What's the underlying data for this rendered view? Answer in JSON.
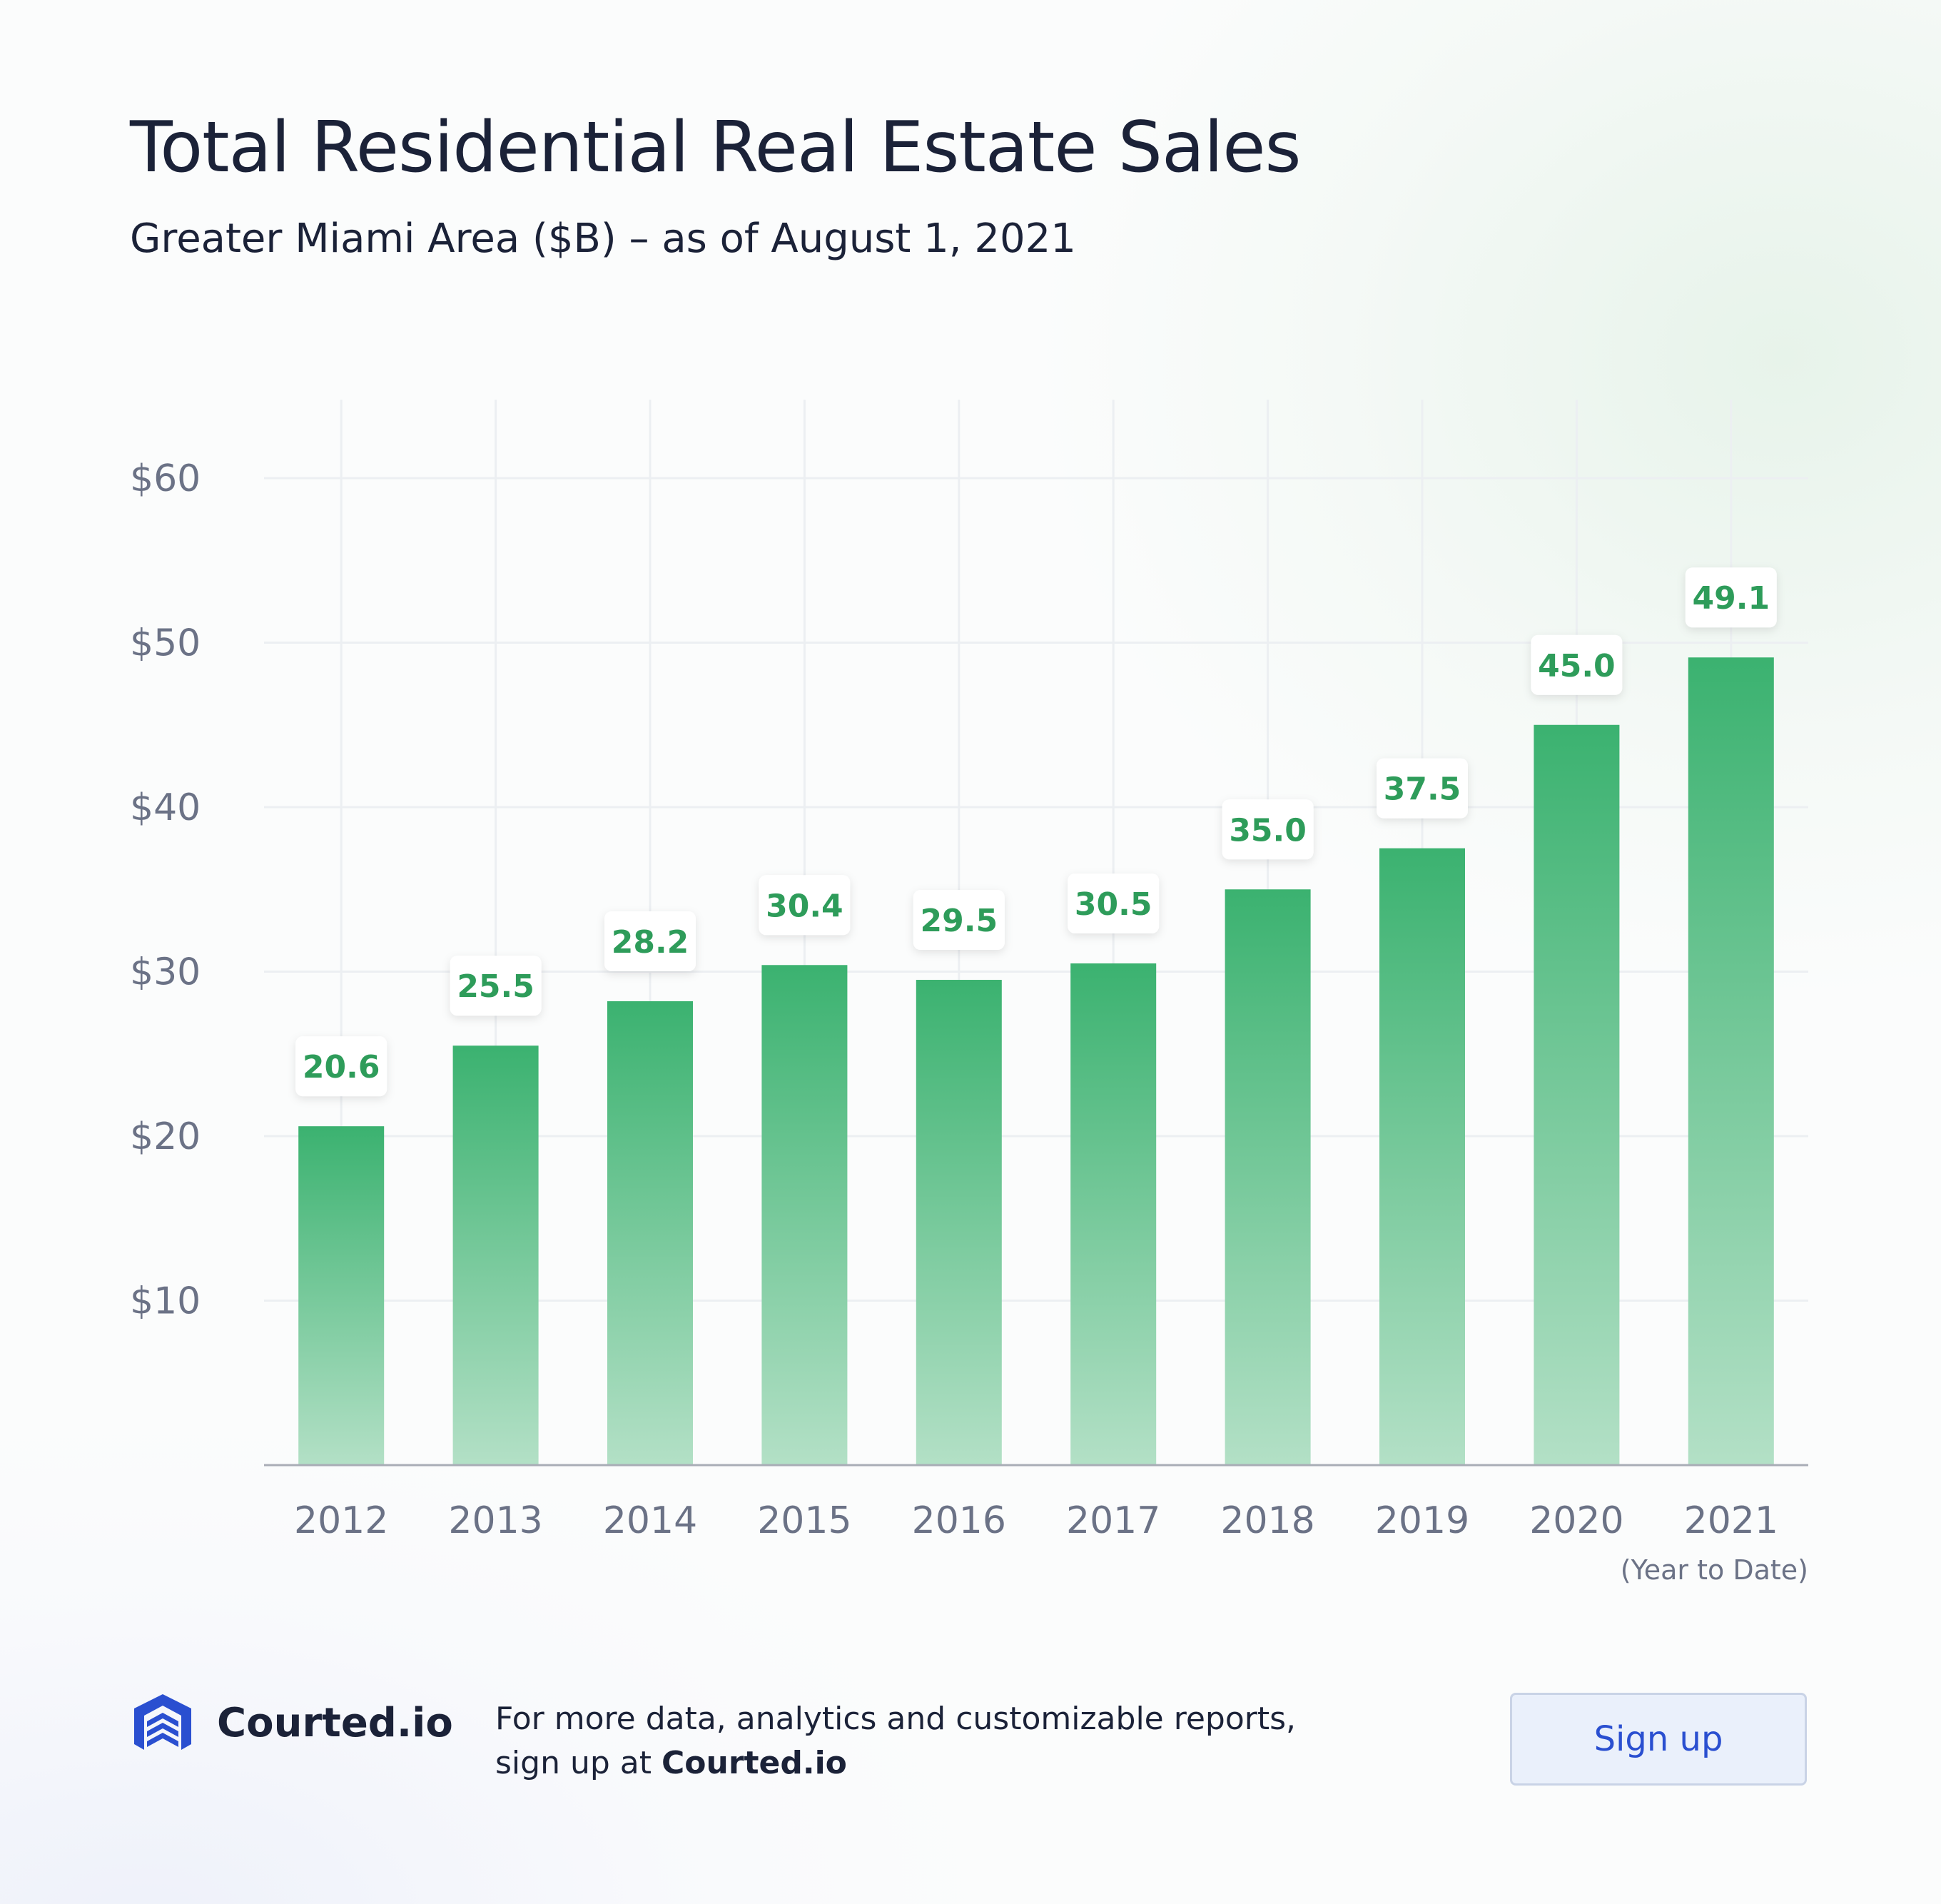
{
  "header": {
    "title": "Total Residential Real Estate Sales",
    "subtitle_strong": "Greater Miami Area ($B)",
    "subtitle_rest": " – as of August 1, 2021"
  },
  "chart_data": {
    "type": "bar",
    "title": "Total Residential Real Estate Sales",
    "subtitle": "Greater Miami Area ($B) – as of August 1, 2021",
    "categories": [
      "2012",
      "2013",
      "2014",
      "2015",
      "2016",
      "2017",
      "2018",
      "2019",
      "2020",
      "2021"
    ],
    "category_notes": [
      "",
      "",
      "",
      "",
      "",
      "",
      "",
      "",
      "",
      "(Year to Date)"
    ],
    "values": [
      20.6,
      25.5,
      28.2,
      30.4,
      29.5,
      30.5,
      35.0,
      37.5,
      45.0,
      49.1
    ],
    "value_labels": [
      "20.6",
      "25.5",
      "28.2",
      "30.4",
      "29.5",
      "30.5",
      "35.0",
      "37.5",
      "45.0",
      "49.1"
    ],
    "yticks": [
      10,
      20,
      30,
      40,
      50,
      60
    ],
    "ytick_labels": [
      "$10",
      "$20",
      "$30",
      "$40",
      "$50",
      "$60"
    ],
    "ylim": [
      0,
      60
    ],
    "grid": true,
    "bar_color_top": "#3bb270",
    "bar_color_bottom": "#b3e0c6",
    "label_color": "#2e9c5a"
  },
  "footer": {
    "brand": "Courted.io",
    "line1": "For more data, analytics and customizable reports,",
    "line2_prefix": "sign up at ",
    "line2_strong": "Courted.io",
    "signup_label": "Sign up",
    "logo_icon": "courted-logo-icon",
    "logo_color": "#2a4fd0"
  }
}
